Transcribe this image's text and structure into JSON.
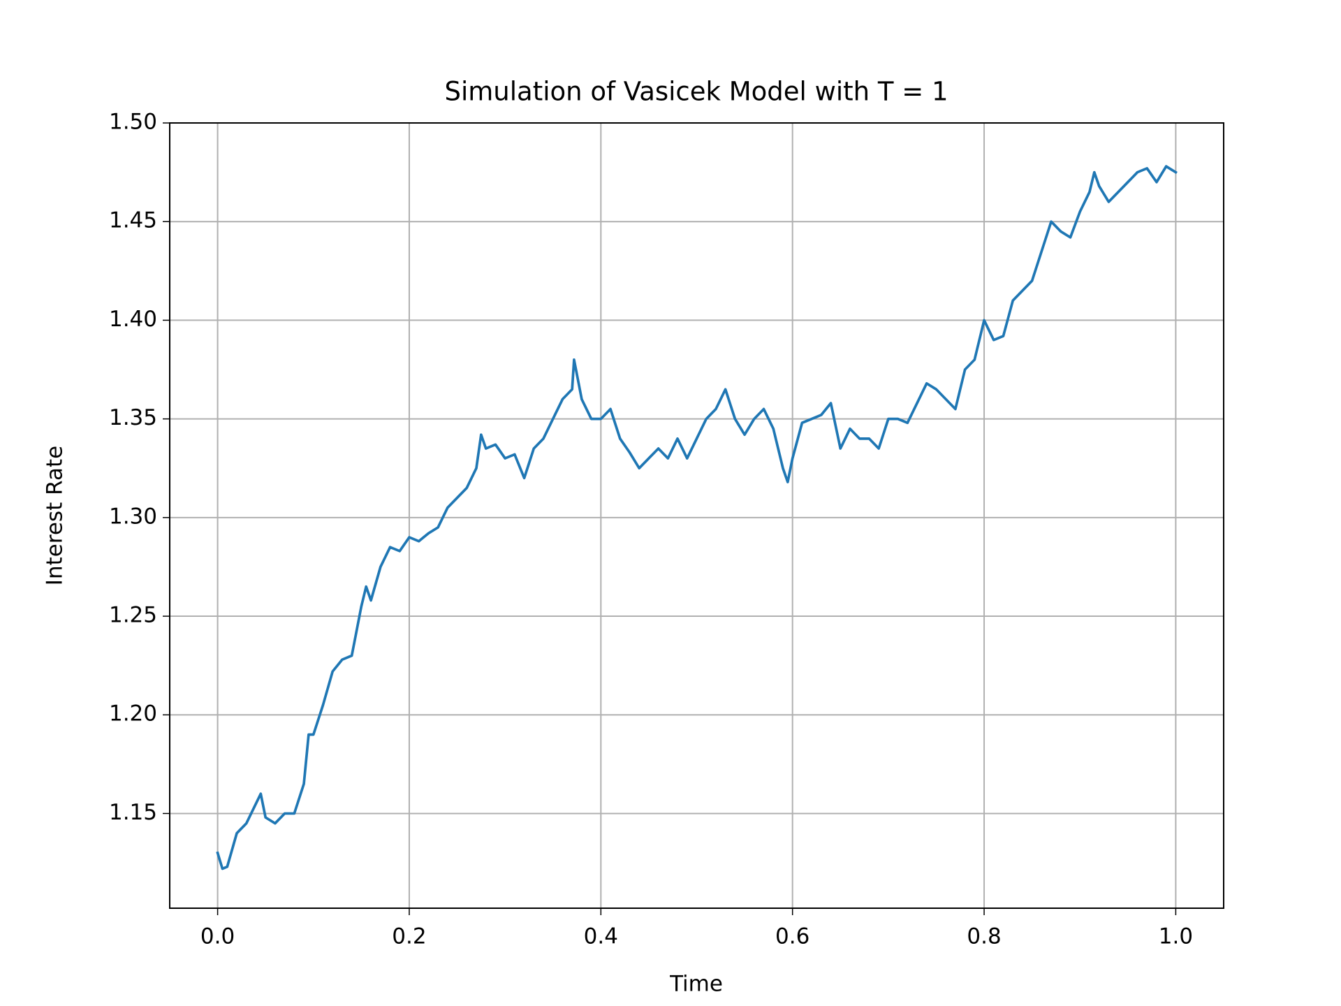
{
  "chart_data": {
    "type": "line",
    "title": "Simulation of Vasicek Model with T = 1",
    "x_label": "Time",
    "y_label": "Interest Rate",
    "x": [
      0.0,
      0.005,
      0.01,
      0.02,
      0.03,
      0.04,
      0.045,
      0.05,
      0.06,
      0.07,
      0.08,
      0.09,
      0.095,
      0.1,
      0.11,
      0.12,
      0.13,
      0.14,
      0.15,
      0.155,
      0.16,
      0.17,
      0.18,
      0.19,
      0.2,
      0.21,
      0.22,
      0.23,
      0.24,
      0.25,
      0.26,
      0.27,
      0.275,
      0.28,
      0.29,
      0.3,
      0.31,
      0.32,
      0.33,
      0.34,
      0.35,
      0.36,
      0.37,
      0.372,
      0.38,
      0.39,
      0.4,
      0.41,
      0.42,
      0.43,
      0.44,
      0.45,
      0.46,
      0.47,
      0.48,
      0.49,
      0.5,
      0.51,
      0.52,
      0.53,
      0.54,
      0.55,
      0.56,
      0.57,
      0.58,
      0.59,
      0.595,
      0.6,
      0.61,
      0.62,
      0.63,
      0.64,
      0.65,
      0.66,
      0.67,
      0.68,
      0.69,
      0.7,
      0.71,
      0.72,
      0.73,
      0.74,
      0.75,
      0.76,
      0.77,
      0.78,
      0.79,
      0.8,
      0.81,
      0.82,
      0.83,
      0.84,
      0.85,
      0.86,
      0.87,
      0.88,
      0.89,
      0.9,
      0.91,
      0.915,
      0.92,
      0.93,
      0.94,
      0.95,
      0.96,
      0.97,
      0.98,
      0.99,
      1.0
    ],
    "series": [
      {
        "name": "Interest Rate",
        "color": "#1f77b4",
        "values": [
          1.13,
          1.122,
          1.123,
          1.14,
          1.145,
          1.155,
          1.16,
          1.148,
          1.145,
          1.15,
          1.15,
          1.165,
          1.19,
          1.19,
          1.205,
          1.222,
          1.228,
          1.23,
          1.255,
          1.265,
          1.258,
          1.275,
          1.285,
          1.283,
          1.29,
          1.288,
          1.292,
          1.295,
          1.305,
          1.31,
          1.315,
          1.325,
          1.342,
          1.335,
          1.337,
          1.33,
          1.332,
          1.32,
          1.335,
          1.34,
          1.35,
          1.36,
          1.365,
          1.38,
          1.36,
          1.35,
          1.35,
          1.355,
          1.34,
          1.333,
          1.325,
          1.33,
          1.335,
          1.33,
          1.34,
          1.33,
          1.34,
          1.35,
          1.355,
          1.365,
          1.35,
          1.342,
          1.35,
          1.355,
          1.345,
          1.325,
          1.318,
          1.33,
          1.348,
          1.35,
          1.352,
          1.358,
          1.335,
          1.345,
          1.34,
          1.34,
          1.335,
          1.35,
          1.35,
          1.348,
          1.358,
          1.368,
          1.365,
          1.36,
          1.355,
          1.375,
          1.38,
          1.4,
          1.39,
          1.392,
          1.41,
          1.415,
          1.42,
          1.435,
          1.45,
          1.445,
          1.442,
          1.455,
          1.465,
          1.475,
          1.468,
          1.46,
          1.465,
          1.47,
          1.475,
          1.477,
          1.47,
          1.478,
          1.475
        ]
      }
    ],
    "xlim": [
      -0.05,
      1.05
    ],
    "ylim": [
      1.102,
      1.5
    ],
    "xticks": [
      {
        "value": 0,
        "label": "0.0"
      },
      0.2,
      0.4,
      0.6,
      0.8,
      {
        "value": 1,
        "label": "1.0"
      }
    ],
    "yticks": [
      1.15,
      {
        "value": 1.2,
        "label": "1.20"
      },
      1.25,
      {
        "value": 1.3,
        "label": "1.30"
      },
      1.35,
      {
        "value": 1.4,
        "label": "1.40"
      },
      1.45,
      {
        "value": 1.5,
        "label": "1.50"
      }
    ],
    "grid": true
  }
}
